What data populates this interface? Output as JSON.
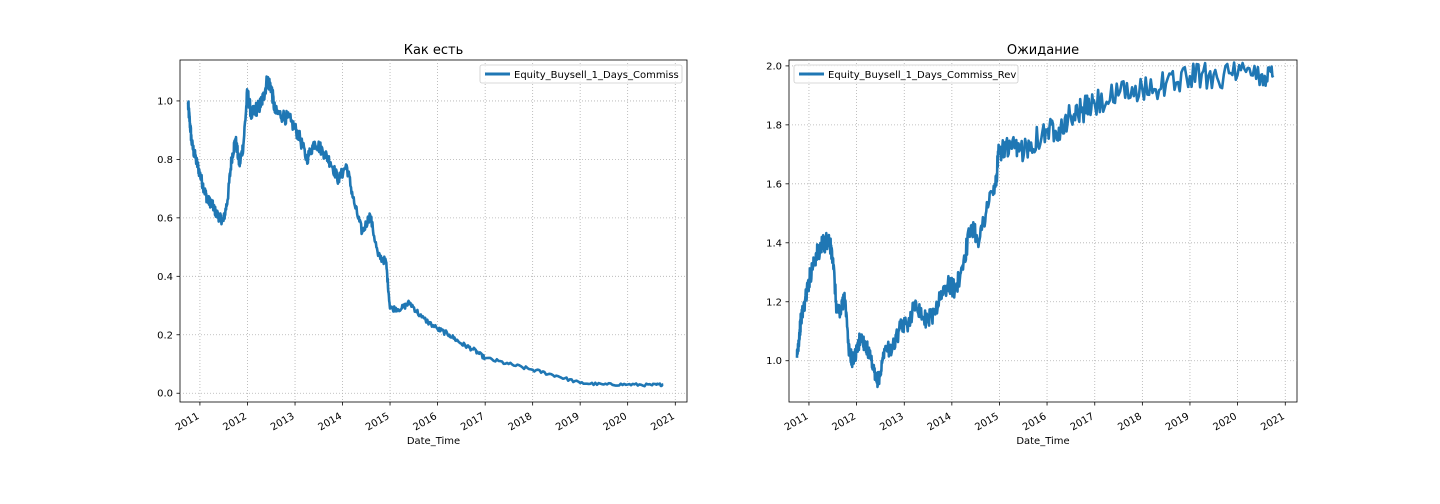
{
  "chart_data": [
    {
      "type": "line",
      "title": "Как есть",
      "xlabel": "Date_Time",
      "ylabel": "",
      "x_ticks": [
        "2011",
        "2012",
        "2013",
        "2014",
        "2015",
        "2016",
        "2017",
        "2018",
        "2019",
        "2020",
        "2021"
      ],
      "y_ticks": [
        "0.0",
        "0.2",
        "0.4",
        "0.6",
        "0.8",
        "1.0"
      ],
      "xlim": [
        "2010-08-01",
        "2021-04-01"
      ],
      "ylim": [
        -0.03,
        1.14
      ],
      "grid": true,
      "legend": "upper right",
      "color": "#1f77b4",
      "series": [
        {
          "name": "Equity_Buysell_1_Days_Commiss",
          "points": [
            [
              "2010-10-01",
              0.99
            ],
            [
              "2010-10-15",
              0.93
            ],
            [
              "2010-11-01",
              0.85
            ],
            [
              "2010-12-01",
              0.8
            ],
            [
              "2011-01-01",
              0.75
            ],
            [
              "2011-02-01",
              0.7
            ],
            [
              "2011-03-01",
              0.66
            ],
            [
              "2011-04-01",
              0.65
            ],
            [
              "2011-05-01",
              0.62
            ],
            [
              "2011-06-01",
              0.6
            ],
            [
              "2011-07-01",
              0.59
            ],
            [
              "2011-08-01",
              0.66
            ],
            [
              "2011-09-01",
              0.8
            ],
            [
              "2011-10-01",
              0.87
            ],
            [
              "2011-11-01",
              0.78
            ],
            [
              "2011-12-01",
              0.85
            ],
            [
              "2012-01-01",
              1.03
            ],
            [
              "2012-02-01",
              0.95
            ],
            [
              "2012-03-01",
              0.97
            ],
            [
              "2012-04-01",
              0.98
            ],
            [
              "2012-05-01",
              1.01
            ],
            [
              "2012-06-01",
              1.07
            ],
            [
              "2012-07-01",
              1.05
            ],
            [
              "2012-08-01",
              0.96
            ],
            [
              "2012-10-01",
              0.95
            ],
            [
              "2012-12-01",
              0.93
            ],
            [
              "2013-02-01",
              0.88
            ],
            [
              "2013-04-01",
              0.8
            ],
            [
              "2013-06-01",
              0.86
            ],
            [
              "2013-08-01",
              0.83
            ],
            [
              "2013-10-01",
              0.79
            ],
            [
              "2013-12-01",
              0.73
            ],
            [
              "2014-02-01",
              0.78
            ],
            [
              "2014-04-01",
              0.65
            ],
            [
              "2014-06-01",
              0.55
            ],
            [
              "2014-08-01",
              0.61
            ],
            [
              "2014-10-01",
              0.47
            ],
            [
              "2014-12-01",
              0.45
            ],
            [
              "2015-01-01",
              0.29
            ],
            [
              "2015-04-01",
              0.29
            ],
            [
              "2015-06-01",
              0.31
            ],
            [
              "2015-09-01",
              0.26
            ],
            [
              "2016-01-01",
              0.22
            ],
            [
              "2016-04-01",
              0.2
            ],
            [
              "2016-07-01",
              0.17
            ],
            [
              "2016-10-01",
              0.15
            ],
            [
              "2017-01-01",
              0.12
            ],
            [
              "2017-07-01",
              0.1
            ],
            [
              "2018-01-01",
              0.08
            ],
            [
              "2018-07-01",
              0.06
            ],
            [
              "2019-01-01",
              0.035
            ],
            [
              "2019-07-01",
              0.03
            ],
            [
              "2020-01-01",
              0.03
            ],
            [
              "2020-07-01",
              0.028
            ],
            [
              "2020-10-01",
              0.03
            ]
          ]
        }
      ]
    },
    {
      "type": "line",
      "title": "Ожидание",
      "xlabel": "Date_Time",
      "ylabel": "",
      "x_ticks": [
        "2011",
        "2012",
        "2013",
        "2014",
        "2015",
        "2016",
        "2017",
        "2018",
        "2019",
        "2020",
        "2021"
      ],
      "y_ticks": [
        "1.0",
        "1.2",
        "1.4",
        "1.6",
        "1.8",
        "2.0"
      ],
      "xlim": [
        "2010-08-01",
        "2021-04-01"
      ],
      "ylim": [
        0.86,
        2.02
      ],
      "grid": true,
      "legend": "upper left",
      "color": "#1f77b4",
      "series": [
        {
          "name": "Equity_Buysell_1_Days_Commiss_Rev",
          "points": [
            [
              "2010-10-01",
              1.01
            ],
            [
              "2010-10-15",
              1.07
            ],
            [
              "2010-11-01",
              1.14
            ],
            [
              "2010-12-01",
              1.2
            ],
            [
              "2011-01-01",
              1.27
            ],
            [
              "2011-02-01",
              1.33
            ],
            [
              "2011-03-01",
              1.36
            ],
            [
              "2011-04-01",
              1.38
            ],
            [
              "2011-05-01",
              1.4
            ],
            [
              "2011-06-01",
              1.41
            ],
            [
              "2011-07-01",
              1.35
            ],
            [
              "2011-08-01",
              1.18
            ],
            [
              "2011-09-01",
              1.16
            ],
            [
              "2011-10-01",
              1.23
            ],
            [
              "2011-11-01",
              1.04
            ],
            [
              "2011-12-01",
              1.0
            ],
            [
              "2012-01-01",
              1.03
            ],
            [
              "2012-02-01",
              1.08
            ],
            [
              "2012-03-01",
              1.06
            ],
            [
              "2012-04-01",
              1.03
            ],
            [
              "2012-05-01",
              0.98
            ],
            [
              "2012-06-01",
              0.93
            ],
            [
              "2012-07-01",
              0.95
            ],
            [
              "2012-08-01",
              1.04
            ],
            [
              "2012-10-01",
              1.04
            ],
            [
              "2012-12-01",
              1.11
            ],
            [
              "2013-02-01",
              1.13
            ],
            [
              "2013-04-01",
              1.2
            ],
            [
              "2013-06-01",
              1.14
            ],
            [
              "2013-08-01",
              1.15
            ],
            [
              "2013-10-01",
              1.21
            ],
            [
              "2013-12-01",
              1.26
            ],
            [
              "2014-02-01",
              1.24
            ],
            [
              "2014-04-01",
              1.34
            ],
            [
              "2014-06-01",
              1.46
            ],
            [
              "2014-08-01",
              1.41
            ],
            [
              "2014-10-01",
              1.53
            ],
            [
              "2014-12-01",
              1.59
            ],
            [
              "2015-01-01",
              1.72
            ],
            [
              "2015-04-01",
              1.72
            ],
            [
              "2015-06-01",
              1.71
            ],
            [
              "2015-09-01",
              1.74
            ],
            [
              "2016-01-01",
              1.78
            ],
            [
              "2016-04-01",
              1.79
            ],
            [
              "2016-07-01",
              1.83
            ],
            [
              "2016-10-01",
              1.85
            ],
            [
              "2017-01-01",
              1.87
            ],
            [
              "2017-07-01",
              1.9
            ],
            [
              "2018-01-01",
              1.92
            ],
            [
              "2018-07-01",
              1.94
            ],
            [
              "2019-01-01",
              1.965
            ],
            [
              "2019-07-01",
              1.97
            ],
            [
              "2020-01-01",
              1.968
            ],
            [
              "2020-07-01",
              1.97
            ],
            [
              "2020-10-01",
              1.968
            ]
          ]
        }
      ]
    }
  ]
}
